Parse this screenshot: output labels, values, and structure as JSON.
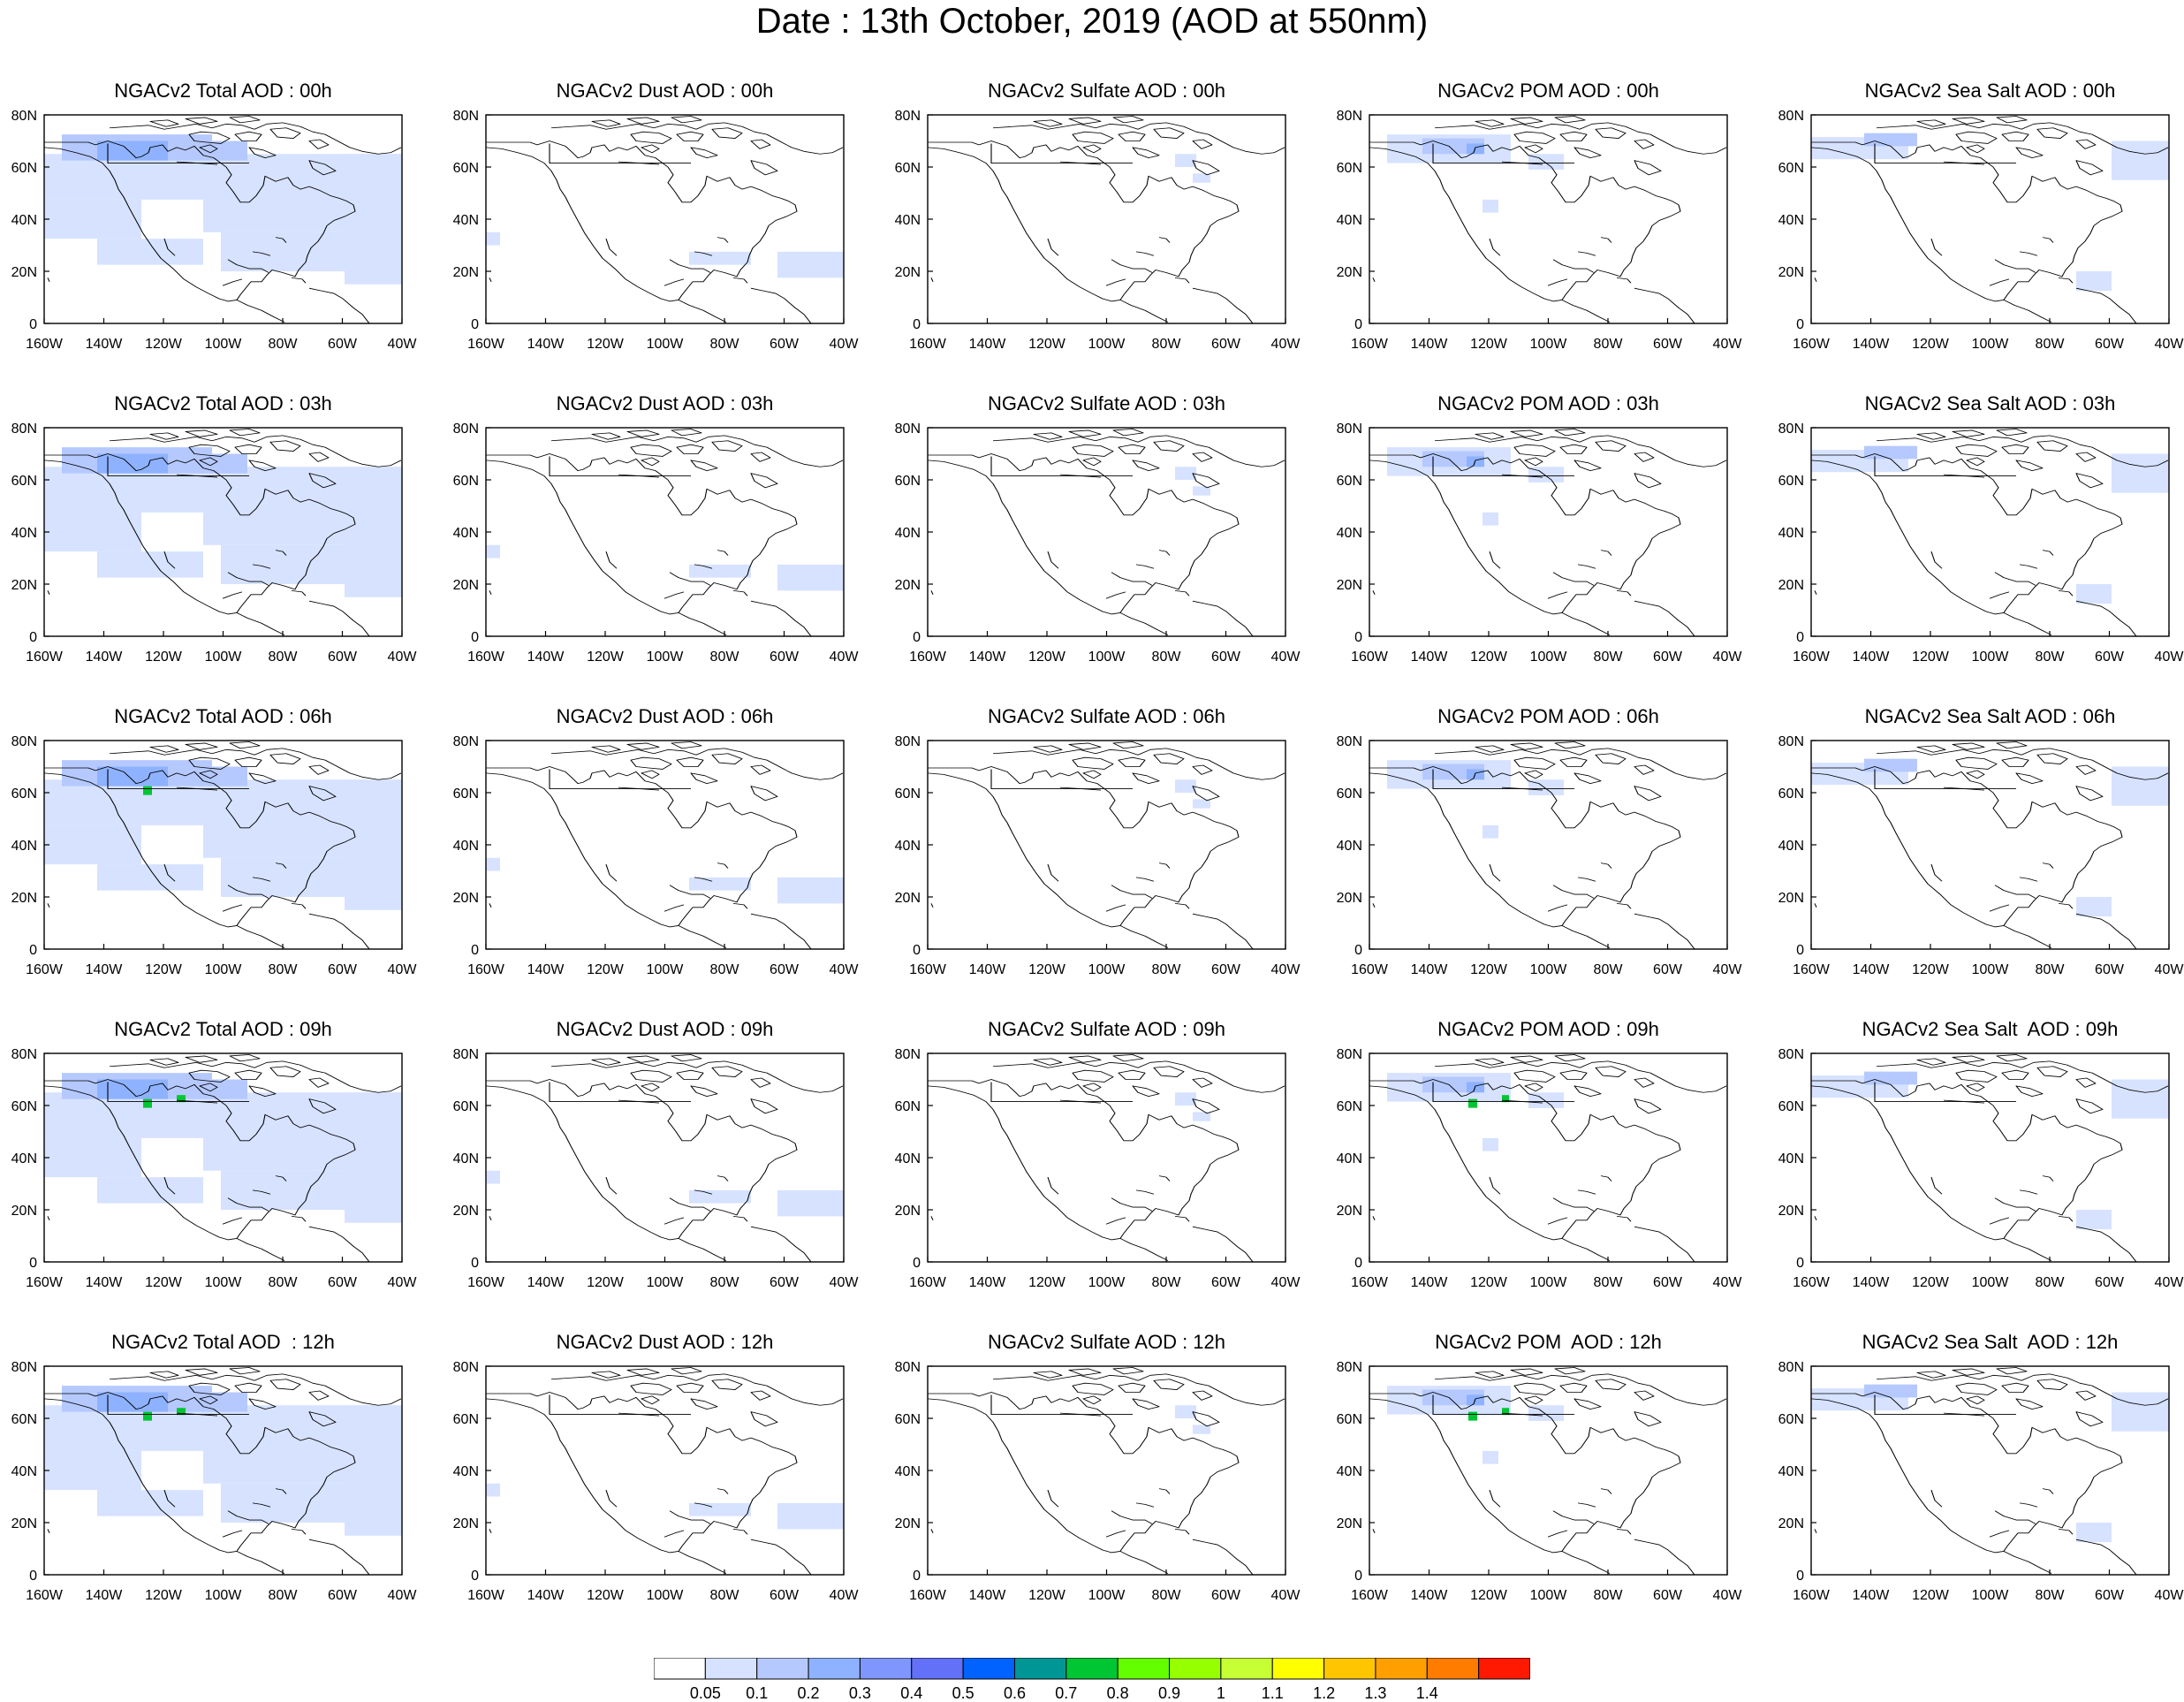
{
  "title": "Date : 13th October, 2019 (AOD at 550nm)",
  "axes": {
    "x_ticks": [
      "160W",
      "140W",
      "120W",
      "100W",
      "80W",
      "60W",
      "40W"
    ],
    "y_ticks": [
      "80N",
      "60N",
      "40N",
      "20N",
      "0"
    ],
    "lon_range": [
      -160,
      -40
    ],
    "lat_range": [
      0,
      80
    ]
  },
  "rows": [
    {
      "hour": "00h",
      "titles": [
        "NGACv2 Total AOD : 00h",
        "NGACv2 Dust AOD : 00h",
        "NGACv2 Sulfate AOD : 00h",
        "NGACv2 POM AOD : 00h",
        "NGACv2 Sea Salt AOD : 00h"
      ]
    },
    {
      "hour": "03h",
      "titles": [
        "NGACv2 Total AOD : 03h",
        "NGACv2 Dust AOD : 03h",
        "NGACv2 Sulfate AOD : 03h",
        "NGACv2 POM AOD : 03h",
        "NGACv2 Sea Salt AOD : 03h"
      ]
    },
    {
      "hour": "06h",
      "titles": [
        "NGACv2 Total AOD : 06h",
        "NGACv2 Dust AOD : 06h",
        "NGACv2 Sulfate AOD : 06h",
        "NGACv2 POM AOD : 06h",
        "NGACv2 Sea Salt AOD : 06h"
      ]
    },
    {
      "hour": "09h",
      "titles": [
        "NGACv2 Total AOD : 09h",
        "NGACv2 Dust AOD : 09h",
        "NGACv2 Sulfate AOD : 09h",
        "NGACv2 POM AOD : 09h",
        "NGACv2 Sea Salt  AOD : 09h"
      ]
    },
    {
      "hour": "12h",
      "titles": [
        "NGACv2 Total AOD  : 12h",
        "NGACv2 Dust AOD : 12h",
        "NGACv2 Sulfate AOD : 12h",
        "NGACv2 POM  AOD : 12h",
        "NGACv2 Sea Salt  AOD : 12h"
      ]
    }
  ],
  "colorbar": {
    "labels": [
      "0.05",
      "0.1",
      "0.2",
      "0.3",
      "0.4",
      "0.5",
      "0.6",
      "0.7",
      "0.8",
      "0.9",
      "1",
      "1.1",
      "1.2",
      "1.3",
      "1.4"
    ],
    "colors": [
      "#ffffff",
      "#d6e2ff",
      "#b5c9ff",
      "#8eb2ff",
      "#7f96ff",
      "#6370f8",
      "#0063ff",
      "#009696",
      "#00c633",
      "#63ff00",
      "#96ff00",
      "#c6ff33",
      "#ffff00",
      "#ffc600",
      "#ffa000",
      "#ff7c00",
      "#ff1900"
    ]
  },
  "map_colors": {
    "light": "#d6e2ff",
    "medium": "#b5c9ff",
    "strong": "#8eb2ff",
    "hotspot_green": "#00c633",
    "hotspot_yellow": "#c6ff33"
  }
}
